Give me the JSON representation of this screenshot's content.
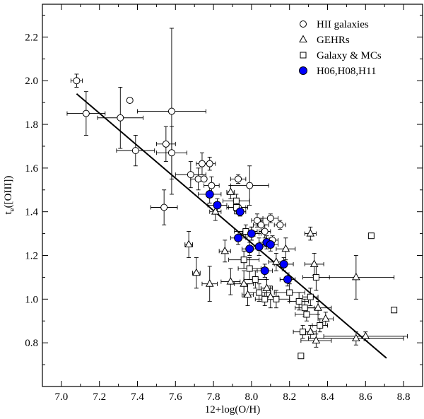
{
  "chart_data": {
    "type": "scatter",
    "title": "",
    "xlabel": "12+log(O/H)",
    "ylabel_main": "t",
    "ylabel_sub": "e",
    "ylabel_rest": "([OIII])",
    "xlim": [
      6.9,
      8.9
    ],
    "ylim": [
      0.6,
      2.35
    ],
    "xticks": [
      7.0,
      7.2,
      7.4,
      7.6,
      7.8,
      8.0,
      8.2,
      8.4,
      8.6,
      8.8
    ],
    "xtick_labels": [
      "7.0",
      "7.2",
      "7.4",
      "7.6",
      "7.8",
      "8.0",
      "8.2",
      "8.4",
      "8.6",
      "8.8"
    ],
    "yticks": [
      0.8,
      1.0,
      1.2,
      1.4,
      1.6,
      1.8,
      2.0,
      2.2
    ],
    "ytick_labels": [
      "0.8",
      "1.0",
      "1.2",
      "1.4",
      "1.6",
      "1.8",
      "2.0",
      "2.2"
    ],
    "legend_position": "top-right",
    "fit_line": {
      "x": [
        7.08,
        8.71
      ],
      "y": [
        1.94,
        0.73
      ]
    },
    "series": [
      {
        "name": "HII galaxies",
        "marker": "circle-open",
        "points": [
          {
            "x": 7.08,
            "y": 2.0,
            "xerr": 0.03,
            "yerr": 0.03
          },
          {
            "x": 7.13,
            "y": 1.85,
            "xerr": 0.1,
            "yerr": 0.1
          },
          {
            "x": 7.31,
            "y": 1.83,
            "xerr": 0.12,
            "yerr": 0.14
          },
          {
            "x": 7.36,
            "y": 1.91,
            "xerr": 0,
            "yerr": 0
          },
          {
            "x": 7.39,
            "y": 1.68,
            "xerr": 0.1,
            "yerr": 0.07
          },
          {
            "x": 7.58,
            "y": 1.86,
            "xerr": 0.18,
            "yerr": 0.38
          },
          {
            "x": 7.55,
            "y": 1.71,
            "xerr": 0.05,
            "yerr": 0.08
          },
          {
            "x": 7.58,
            "y": 1.67,
            "xerr": 0.08,
            "yerr": 0.12
          },
          {
            "x": 7.54,
            "y": 1.42,
            "xerr": 0.07,
            "yerr": 0.08
          },
          {
            "x": 7.68,
            "y": 1.57,
            "xerr": 0.08,
            "yerr": 0.06
          },
          {
            "x": 7.72,
            "y": 1.55,
            "xerr": 0.04,
            "yerr": 0.05
          },
          {
            "x": 7.75,
            "y": 1.55,
            "xerr": 0,
            "yerr": 0
          },
          {
            "x": 7.74,
            "y": 1.62,
            "xerr": 0.03,
            "yerr": 0.05
          },
          {
            "x": 7.78,
            "y": 1.62,
            "xerr": 0.03,
            "yerr": 0.03
          },
          {
            "x": 7.79,
            "y": 1.52,
            "xerr": 0.04,
            "yerr": 0.04
          },
          {
            "x": 7.93,
            "y": 1.55,
            "xerr": 0.04,
            "yerr": 0.02
          },
          {
            "x": 7.99,
            "y": 1.52,
            "xerr": 0.1,
            "yerr": 0.09
          },
          {
            "x": 7.93,
            "y": 1.42,
            "xerr": 0.05,
            "yerr": 0.03
          },
          {
            "x": 8.03,
            "y": 1.36,
            "xerr": 0.03,
            "yerr": 0.03
          },
          {
            "x": 8.05,
            "y": 1.34,
            "xerr": 0.04,
            "yerr": 0.03
          },
          {
            "x": 8.1,
            "y": 1.37,
            "xerr": 0.04,
            "yerr": 0.02
          },
          {
            "x": 8.15,
            "y": 1.34,
            "xerr": 0.03,
            "yerr": 0.02
          },
          {
            "x": 8.07,
            "y": 1.31,
            "xerr": 0.03,
            "yerr": 0.03
          },
          {
            "x": 8.11,
            "y": 1.27,
            "xerr": 0.03,
            "yerr": 0.02
          }
        ]
      },
      {
        "name": "GEHRs",
        "marker": "triangle-open",
        "points": [
          {
            "x": 7.89,
            "y": 1.49,
            "xerr": 0.02,
            "yerr": 0.03
          },
          {
            "x": 7.81,
            "y": 1.4,
            "xerr": 0.03,
            "yerr": 0.04
          },
          {
            "x": 7.67,
            "y": 1.25,
            "xerr": 0.02,
            "yerr": 0.06
          },
          {
            "x": 7.71,
            "y": 1.12,
            "xerr": 0.02,
            "yerr": 0.07
          },
          {
            "x": 7.78,
            "y": 1.07,
            "xerr": 0.04,
            "yerr": 0.08
          },
          {
            "x": 7.86,
            "y": 1.22,
            "xerr": 0.03,
            "yerr": 0.05
          },
          {
            "x": 7.89,
            "y": 1.08,
            "xerr": 0.05,
            "yerr": 0.06
          },
          {
            "x": 7.96,
            "y": 1.07,
            "xerr": 0.05,
            "yerr": 0.06
          },
          {
            "x": 7.98,
            "y": 1.02,
            "xerr": 0.03,
            "yerr": 0.05
          },
          {
            "x": 8.0,
            "y": 1.3,
            "xerr": 0.04,
            "yerr": 0.03
          },
          {
            "x": 8.08,
            "y": 1.05,
            "xerr": 0.03,
            "yerr": 0.04
          },
          {
            "x": 8.1,
            "y": 1.01,
            "xerr": 0.04,
            "yerr": 0.05
          },
          {
            "x": 8.13,
            "y": 1.17,
            "xerr": 0.04,
            "yerr": 0.04
          },
          {
            "x": 8.18,
            "y": 1.23,
            "xerr": 0.05,
            "yerr": 0.05
          },
          {
            "x": 8.31,
            "y": 1.3,
            "xerr": 0.03,
            "yerr": 0.03
          },
          {
            "x": 8.33,
            "y": 1.16,
            "xerr": 0.05,
            "yerr": 0.05
          },
          {
            "x": 8.35,
            "y": 0.96,
            "xerr": 0.07,
            "yerr": 0.03
          },
          {
            "x": 8.39,
            "y": 0.91,
            "xerr": 0.04,
            "yerr": 0.03
          },
          {
            "x": 8.31,
            "y": 0.85,
            "xerr": 0.03,
            "yerr": 0.03
          },
          {
            "x": 8.34,
            "y": 0.81,
            "xerr": 0.08,
            "yerr": 0.03
          },
          {
            "x": 8.55,
            "y": 1.1,
            "xerr": 0.2,
            "yerr": 0.1
          },
          {
            "x": 8.55,
            "y": 0.82,
            "xerr": 0.25,
            "yerr": 0.03
          },
          {
            "x": 8.6,
            "y": 0.83,
            "xerr": 0.22,
            "yerr": 0.02
          }
        ]
      },
      {
        "name": "Galaxy & MCs",
        "marker": "square-open",
        "points": [
          {
            "x": 7.92,
            "y": 1.45,
            "xerr": 0.07,
            "yerr": 0.03
          },
          {
            "x": 7.92,
            "y": 1.42,
            "xerr": 0.05,
            "yerr": 0.03
          },
          {
            "x": 7.97,
            "y": 1.31,
            "xerr": 0.06,
            "yerr": 0.03
          },
          {
            "x": 7.96,
            "y": 1.18,
            "xerr": 0.08,
            "yerr": 0.04
          },
          {
            "x": 7.99,
            "y": 1.14,
            "xerr": 0.06,
            "yerr": 0.05
          },
          {
            "x": 8.02,
            "y": 1.09,
            "xerr": 0.06,
            "yerr": 0.04
          },
          {
            "x": 8.04,
            "y": 1.03,
            "xerr": 0.06,
            "yerr": 0.04
          },
          {
            "x": 8.07,
            "y": 1.0,
            "xerr": 0.05,
            "yerr": 0.03
          },
          {
            "x": 8.13,
            "y": 1.0,
            "xerr": 0.07,
            "yerr": 0.04
          },
          {
            "x": 8.2,
            "y": 1.03,
            "xerr": 0.08,
            "yerr": 0.04
          },
          {
            "x": 8.25,
            "y": 0.99,
            "xerr": 0.05,
            "yerr": 0.04
          },
          {
            "x": 8.28,
            "y": 0.96,
            "xerr": 0.05,
            "yerr": 0.04
          },
          {
            "x": 8.31,
            "y": 1.01,
            "xerr": 0.04,
            "yerr": 0.04
          },
          {
            "x": 8.29,
            "y": 0.93,
            "xerr": 0.06,
            "yerr": 0.03
          },
          {
            "x": 8.27,
            "y": 0.85,
            "xerr": 0.05,
            "yerr": 0.03
          },
          {
            "x": 8.34,
            "y": 1.1,
            "xerr": 0.07,
            "yerr": 0.06
          },
          {
            "x": 8.36,
            "y": 0.88,
            "xerr": 0.04,
            "yerr": 0.03
          },
          {
            "x": 8.26,
            "y": 0.74,
            "xerr": 0,
            "yerr": 0
          },
          {
            "x": 8.63,
            "y": 1.29,
            "xerr": 0,
            "yerr": 0
          },
          {
            "x": 8.75,
            "y": 0.95,
            "xerr": 0,
            "yerr": 0
          }
        ]
      },
      {
        "name": "H06,H08,H11",
        "marker": "circle-filled",
        "color": "#0000ff",
        "points": [
          {
            "x": 7.78,
            "y": 1.48,
            "xerr": 0.06,
            "yerr": 0.04
          },
          {
            "x": 7.82,
            "y": 1.43,
            "xerr": 0.05,
            "yerr": 0.03
          },
          {
            "x": 7.94,
            "y": 1.4,
            "xerr": 0.03,
            "yerr": 0.02
          },
          {
            "x": 7.93,
            "y": 1.28,
            "xerr": 0.04,
            "yerr": 0.03
          },
          {
            "x": 7.99,
            "y": 1.23,
            "xerr": 0.04,
            "yerr": 0.03
          },
          {
            "x": 8.0,
            "y": 1.3,
            "xerr": 0.05,
            "yerr": 0.03
          },
          {
            "x": 8.04,
            "y": 1.24,
            "xerr": 0.05,
            "yerr": 0.04
          },
          {
            "x": 8.08,
            "y": 1.26,
            "xerr": 0.04,
            "yerr": 0.03
          },
          {
            "x": 8.1,
            "y": 1.25,
            "xerr": 0.04,
            "yerr": 0.03
          },
          {
            "x": 8.07,
            "y": 1.13,
            "xerr": 0.04,
            "yerr": 0.03
          },
          {
            "x": 8.17,
            "y": 1.16,
            "xerr": 0.05,
            "yerr": 0.03
          },
          {
            "x": 8.19,
            "y": 1.09,
            "xerr": 0.04,
            "yerr": 0.03
          }
        ]
      }
    ]
  }
}
